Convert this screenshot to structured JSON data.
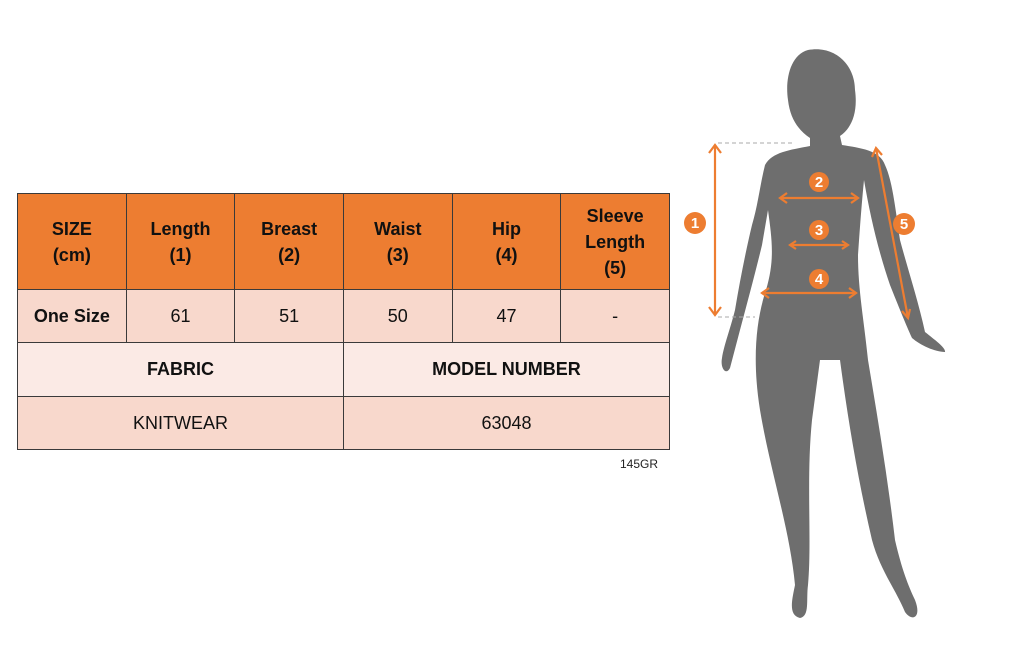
{
  "size_table": {
    "headers": [
      "SIZE\n(cm)",
      "Length\n(1)",
      "Breast\n(2)",
      "Waist\n(3)",
      "Hip\n(4)",
      "Sleeve\nLength\n(5)"
    ],
    "rows": [
      [
        "One Size",
        "61",
        "51",
        "50",
        "47",
        "-"
      ]
    ],
    "fabric_label": "FABRIC",
    "model_number_label": "MODEL NUMBER",
    "fabric_value": "KNITWEAR",
    "model_number_value": "63048"
  },
  "product_code": "145GR",
  "figure": {
    "markers": [
      "1",
      "2",
      "3",
      "4",
      "5"
    ],
    "colors": {
      "accent": "#ED7D31",
      "silhouette": "#6E6E6E",
      "header": "#ED7D31",
      "row": "#F8D8CC",
      "row_light": "#FBEAE5"
    }
  }
}
